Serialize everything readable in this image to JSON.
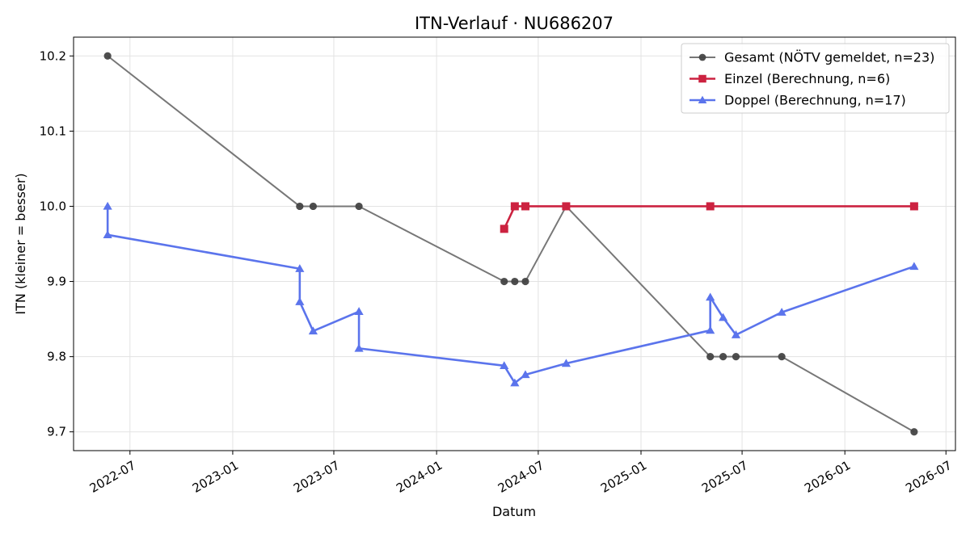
{
  "chart_data": {
    "type": "line",
    "title": "ITN-Verlauf · NU686207",
    "xlabel": "Datum",
    "ylabel": "ITN  (kleiner = besser)",
    "x_type": "date",
    "xlim": [
      "2022-03-22",
      "2026-07-18"
    ],
    "ylim": [
      9.675,
      10.225
    ],
    "x_ticks": [
      "2022-07-01",
      "2023-01-01",
      "2023-07-01",
      "2024-01-01",
      "2024-07-01",
      "2025-01-01",
      "2025-07-01",
      "2026-01-01",
      "2026-07-01"
    ],
    "x_tick_labels": [
      "2022-07",
      "2023-01",
      "2023-07",
      "2024-01",
      "2024-07",
      "2025-01",
      "2025-07",
      "2026-01",
      "2026-07"
    ],
    "y_ticks": [
      9.7,
      9.8,
      9.9,
      10.0,
      10.1,
      10.2
    ],
    "y_tick_labels": [
      "9.7",
      "9.8",
      "9.9",
      "10.0",
      "10.1",
      "10.2"
    ],
    "grid": true,
    "legend_position": "top-right",
    "series": [
      {
        "name": "Gesamt (NÖTV gemeldet, n=23)",
        "color": "#777777",
        "marker": "circle",
        "x": [
          "2022-05-22",
          "2023-05-01",
          "2023-05-25",
          "2023-08-15",
          "2024-05-01",
          "2024-05-20",
          "2024-06-08",
          "2024-08-20",
          "2025-05-05",
          "2025-05-28",
          "2025-06-20",
          "2025-09-10",
          "2026-05-05"
        ],
        "y": [
          10.2,
          10.0,
          10.0,
          10.0,
          9.9,
          9.9,
          9.9,
          10.0,
          9.8,
          9.8,
          9.8,
          9.8,
          9.7
        ]
      },
      {
        "name": "Einzel (Berechnung, n=6)",
        "color": "#cc2240",
        "marker": "square",
        "x": [
          "2024-05-01",
          "2024-05-20",
          "2024-06-08",
          "2024-08-20",
          "2025-05-05",
          "2026-05-05"
        ],
        "y": [
          9.97,
          10.0,
          10.0,
          10.0,
          10.0,
          10.0
        ]
      },
      {
        "name": "Doppel (Berechnung, n=17)",
        "color": "#5b74ec",
        "marker": "triangle",
        "x": [
          "2022-05-22",
          "2022-05-22",
          "2023-05-01",
          "2023-05-01",
          "2023-05-25",
          "2023-08-15",
          "2023-08-15",
          "2024-05-01",
          "2024-05-20",
          "2024-06-08",
          "2024-08-20",
          "2025-05-05",
          "2025-05-05",
          "2025-05-28",
          "2025-06-20",
          "2025-09-10",
          "2026-05-05"
        ],
        "y": [
          10.0,
          9.962,
          9.917,
          9.873,
          9.834,
          9.86,
          9.811,
          9.788,
          9.765,
          9.776,
          9.791,
          9.835,
          9.879,
          9.852,
          9.829,
          9.859,
          9.92
        ]
      }
    ]
  }
}
